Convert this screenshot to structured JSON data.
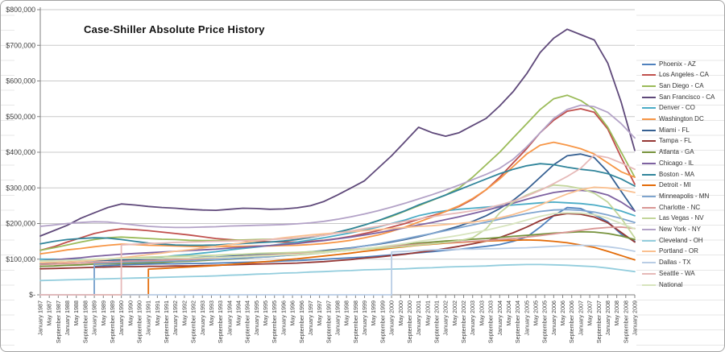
{
  "chart_data": {
    "type": "line",
    "title": "Case-Shiller Absolute Price History",
    "unit": "USD thousands",
    "sampling": "semiannual points from January 1987 to January 2009",
    "grid": "horizontal",
    "legend_position": "right",
    "y_axis": {
      "min": 0,
      "max": 800000,
      "tick_labels": [
        "$800,000",
        "$700,000",
        "$600,000",
        "$500,000",
        "$400,000",
        "$300,000",
        "$200,000",
        "$100,000",
        "$-"
      ]
    },
    "x_axis": {
      "tick_interval_months": 4,
      "labels": [
        "January 1987",
        "May 1987",
        "September 1987",
        "January 1988",
        "May 1988",
        "September 1988",
        "January 1989",
        "May 1989",
        "September 1989",
        "January 1990",
        "May 1990",
        "September 1990",
        "January 1991",
        "May 1991",
        "September 1991",
        "January 1992",
        "May 1992",
        "September 1992",
        "January 1993",
        "May 1993",
        "September 1993",
        "January 1994",
        "May 1994",
        "September 1994",
        "January 1995",
        "May 1995",
        "September 1995",
        "January 1996",
        "May 1996",
        "September 1996",
        "January 1997",
        "May 1997",
        "September 1997",
        "January 1998",
        "May 1998",
        "September 1998",
        "January 1999",
        "May 1999",
        "September 1999",
        "January 2000",
        "May 2000",
        "September 2000",
        "January 2001",
        "May 2001",
        "September 2001",
        "January 2002",
        "May 2002",
        "September 2002",
        "January 2003",
        "May 2003",
        "September 2003",
        "January 2004",
        "May 2004",
        "September 2004",
        "January 2005",
        "May 2005",
        "September 2005",
        "January 2006",
        "May 2006",
        "September 2006",
        "January 2007",
        "May 2007",
        "September 2007",
        "January 2008",
        "May 2008",
        "September 2008",
        "January 2009"
      ]
    },
    "series": [
      {
        "name": "Phoenix - AZ",
        "color": "#4F81BD",
        "values": [
          0,
          0,
          0,
          0,
          80,
          82,
          84,
          85,
          86,
          87,
          87,
          88,
          88,
          89,
          90,
          91,
          92,
          93,
          95,
          96,
          98,
          100,
          102,
          104,
          106,
          109,
          112,
          115,
          118,
          121,
          125,
          128,
          132,
          136,
          141,
          150,
          162,
          190,
          222,
          245,
          242,
          225,
          205,
          170,
          150
        ]
      },
      {
        "name": "Los Angeles - CA",
        "color": "#C0504D",
        "values": [
          125,
          135,
          148,
          160,
          172,
          180,
          185,
          183,
          180,
          176,
          172,
          168,
          163,
          158,
          155,
          152,
          150,
          149,
          148,
          148,
          150,
          153,
          158,
          164,
          172,
          180,
          190,
          200,
          212,
          222,
          234,
          248,
          268,
          295,
          330,
          370,
          410,
          455,
          490,
          515,
          522,
          512,
          465,
          385,
          310
        ]
      },
      {
        "name": "San Diego - CA",
        "color": "#9BBB59",
        "values": [
          125,
          132,
          140,
          148,
          155,
          160,
          162,
          160,
          158,
          156,
          155,
          153,
          152,
          152,
          153,
          154,
          155,
          156,
          157,
          159,
          162,
          168,
          175,
          185,
          196,
          208,
          220,
          235,
          250,
          265,
          280,
          300,
          330,
          365,
          400,
          440,
          480,
          520,
          550,
          560,
          545,
          520,
          470,
          400,
          330
        ]
      },
      {
        "name": "San Francisco - CA",
        "color": "#5F497A",
        "values": [
          165,
          180,
          195,
          215,
          230,
          245,
          255,
          252,
          248,
          245,
          243,
          240,
          238,
          237,
          240,
          243,
          242,
          240,
          241,
          244,
          250,
          262,
          280,
          300,
          320,
          355,
          390,
          430,
          470,
          455,
          445,
          455,
          475,
          495,
          530,
          570,
          620,
          680,
          720,
          745,
          730,
          715,
          650,
          540,
          405
        ]
      },
      {
        "name": "Denver - CO",
        "color": "#4BACC6",
        "values": [
          100,
          100,
          99,
          99,
          98,
          99,
          100,
          101,
          103,
          106,
          110,
          113,
          117,
          121,
          126,
          130,
          134,
          138,
          143,
          148,
          154,
          160,
          167,
          174,
          182,
          190,
          200,
          210,
          222,
          230,
          236,
          240,
          243,
          246,
          249,
          252,
          255,
          258,
          260,
          258,
          256,
          252,
          245,
          235,
          222
        ]
      },
      {
        "name": "Washington DC",
        "color": "#F79646",
        "values": [
          115,
          120,
          126,
          130,
          135,
          139,
          142,
          141,
          139,
          138,
          137,
          136,
          135,
          135,
          136,
          136,
          137,
          137,
          138,
          139,
          141,
          144,
          148,
          153,
          160,
          168,
          178,
          190,
          204,
          218,
          234,
          250,
          270,
          295,
          325,
          360,
          395,
          420,
          428,
          420,
          410,
          395,
          370,
          345,
          330
        ]
      },
      {
        "name": "Miami - FL",
        "color": "#366092",
        "values": [
          88,
          90,
          92,
          94,
          96,
          97,
          98,
          99,
          100,
          101,
          102,
          103,
          105,
          106,
          108,
          110,
          112,
          114,
          116,
          118,
          121,
          124,
          128,
          132,
          137,
          142,
          148,
          155,
          163,
          172,
          182,
          193,
          206,
          222,
          242,
          265,
          295,
          330,
          365,
          390,
          395,
          385,
          345,
          290,
          235
        ]
      },
      {
        "name": "Tampa - FL",
        "color": "#953735",
        "values": [
          73,
          74,
          75,
          76,
          77,
          78,
          79,
          79,
          80,
          80,
          81,
          81,
          82,
          83,
          84,
          85,
          86,
          87,
          88,
          89,
          91,
          93,
          96,
          99,
          103,
          106,
          110,
          114,
          119,
          124,
          130,
          136,
          143,
          151,
          161,
          174,
          190,
          208,
          222,
          228,
          226,
          218,
          202,
          175,
          148
        ]
      },
      {
        "name": "Atlanta - GA",
        "color": "#76923C",
        "values": [
          80,
          81,
          83,
          84,
          86,
          87,
          88,
          89,
          90,
          91,
          93,
          94,
          96,
          98,
          100,
          102,
          105,
          107,
          110,
          112,
          115,
          118,
          122,
          125,
          129,
          133,
          137,
          141,
          145,
          148,
          151,
          153,
          156,
          158,
          161,
          164,
          167,
          170,
          173,
          175,
          177,
          176,
          172,
          165,
          155
        ]
      },
      {
        "name": "Chicago - IL",
        "color": "#7E62A1",
        "values": [
          95,
          98,
          101,
          104,
          108,
          111,
          114,
          116,
          118,
          120,
          122,
          124,
          126,
          128,
          131,
          133,
          136,
          138,
          141,
          144,
          148,
          152,
          157,
          162,
          168,
          174,
          181,
          188,
          196,
          203,
          211,
          219,
          228,
          237,
          247,
          257,
          268,
          278,
          287,
          292,
          293,
          290,
          280,
          260,
          235
        ]
      },
      {
        "name": "Boston - MA",
        "color": "#31859B",
        "values": [
          143,
          150,
          155,
          158,
          160,
          159,
          155,
          150,
          145,
          142,
          140,
          139,
          139,
          140,
          142,
          144,
          146,
          148,
          151,
          155,
          161,
          168,
          176,
          185,
          196,
          208,
          222,
          236,
          252,
          266,
          280,
          295,
          310,
          325,
          340,
          352,
          362,
          368,
          365,
          358,
          352,
          348,
          340,
          325,
          305
        ]
      },
      {
        "name": "Detroit - MI",
        "color": "#E36C09",
        "values": [
          0,
          0,
          0,
          0,
          0,
          0,
          0,
          0,
          72,
          74,
          76,
          78,
          80,
          82,
          85,
          88,
          91,
          94,
          98,
          101,
          105,
          109,
          113,
          117,
          122,
          126,
          131,
          135,
          139,
          142,
          145,
          147,
          149,
          151,
          152,
          153,
          154,
          153,
          150,
          146,
          140,
          133,
          122,
          110,
          98
        ]
      },
      {
        "name": "Minneapolis - MN",
        "color": "#7FA5CF",
        "values": [
          0,
          0,
          0,
          0,
          88,
          89,
          91,
          92,
          93,
          94,
          95,
          96,
          98,
          99,
          101,
          103,
          105,
          107,
          110,
          113,
          117,
          121,
          126,
          131,
          137,
          143,
          150,
          157,
          165,
          172,
          180,
          188,
          196,
          204,
          212,
          220,
          228,
          234,
          238,
          239,
          237,
          232,
          224,
          214,
          203
        ]
      },
      {
        "name": "Charlotte - NC",
        "color": "#D99694",
        "values": [
          85,
          86,
          88,
          89,
          91,
          92,
          94,
          95,
          96,
          97,
          99,
          100,
          102,
          104,
          106,
          108,
          110,
          112,
          114,
          116,
          119,
          121,
          124,
          127,
          130,
          133,
          136,
          139,
          142,
          144,
          146,
          148,
          150,
          152,
          155,
          158,
          162,
          166,
          171,
          176,
          181,
          186,
          189,
          190,
          186
        ]
      },
      {
        "name": "Las Vegas - NV",
        "color": "#C3D69B",
        "values": [
          95,
          96,
          97,
          98,
          100,
          101,
          103,
          104,
          106,
          107,
          108,
          109,
          110,
          111,
          113,
          114,
          116,
          117,
          118,
          119,
          121,
          122,
          124,
          126,
          128,
          130,
          133,
          136,
          140,
          143,
          147,
          152,
          160,
          185,
          230,
          260,
          280,
          295,
          308,
          305,
          298,
          285,
          260,
          215,
          160
        ]
      },
      {
        "name": "New York - NY",
        "color": "#B3A2C7",
        "values": [
          192,
          196,
          200,
          203,
          205,
          204,
          200,
          196,
          192,
          190,
          189,
          189,
          190,
          191,
          193,
          194,
          195,
          196,
          197,
          199,
          202,
          206,
          212,
          219,
          227,
          236,
          246,
          257,
          269,
          281,
          294,
          308,
          323,
          338,
          355,
          380,
          415,
          455,
          495,
          520,
          532,
          528,
          512,
          480,
          440
        ]
      },
      {
        "name": "Cleveland - OH",
        "color": "#93CDDD",
        "values": [
          40,
          41,
          42,
          43,
          44,
          45,
          46,
          47,
          48,
          49,
          50,
          51,
          52,
          53,
          55,
          56,
          58,
          59,
          61,
          62,
          64,
          65,
          67,
          68,
          70,
          71,
          72,
          73,
          75,
          76,
          78,
          79,
          80,
          81,
          83,
          84,
          85,
          85,
          84,
          83,
          81,
          79,
          75,
          70,
          65
        ]
      },
      {
        "name": "Portland - OR",
        "color": "#FAC090",
        "values": [
          90,
          91,
          92,
          94,
          97,
          100,
          104,
          108,
          113,
          117,
          122,
          126,
          131,
          136,
          141,
          146,
          151,
          155,
          160,
          164,
          168,
          171,
          174,
          177,
          180,
          183,
          186,
          189,
          192,
          194,
          197,
          200,
          204,
          209,
          216,
          225,
          237,
          252,
          268,
          283,
          295,
          302,
          300,
          295,
          287
        ]
      },
      {
        "name": "Dallas - TX",
        "color": "#B9CDE5",
        "values": [
          0,
          0,
          0,
          0,
          0,
          0,
          0,
          0,
          0,
          0,
          0,
          0,
          0,
          0,
          0,
          0,
          0,
          0,
          0,
          0,
          0,
          0,
          0,
          0,
          0,
          0,
          120,
          122,
          124,
          126,
          127,
          128,
          128,
          129,
          130,
          131,
          132,
          134,
          136,
          138,
          139,
          138,
          135,
          130,
          122
        ]
      },
      {
        "name": "Seattle - WA",
        "color": "#E6B9B8",
        "values": [
          0,
          0,
          0,
          0,
          0,
          0,
          140,
          142,
          144,
          145,
          147,
          148,
          149,
          150,
          151,
          152,
          153,
          155,
          157,
          159,
          163,
          167,
          173,
          179,
          186,
          192,
          199,
          206,
          213,
          219,
          225,
          230,
          236,
          243,
          252,
          263,
          277,
          293,
          312,
          332,
          355,
          392,
          385,
          370,
          352
        ]
      },
      {
        "name": "National",
        "color": "#D7E4BD",
        "values": [
          94,
          95,
          97,
          98,
          100,
          101,
          102,
          102,
          102,
          102,
          103,
          103,
          104,
          105,
          106,
          107,
          109,
          110,
          112,
          113,
          116,
          118,
          122,
          125,
          130,
          134,
          139,
          144,
          150,
          155,
          161,
          167,
          174,
          181,
          190,
          199,
          210,
          220,
          228,
          230,
          229,
          225,
          215,
          200,
          185
        ]
      }
    ]
  }
}
